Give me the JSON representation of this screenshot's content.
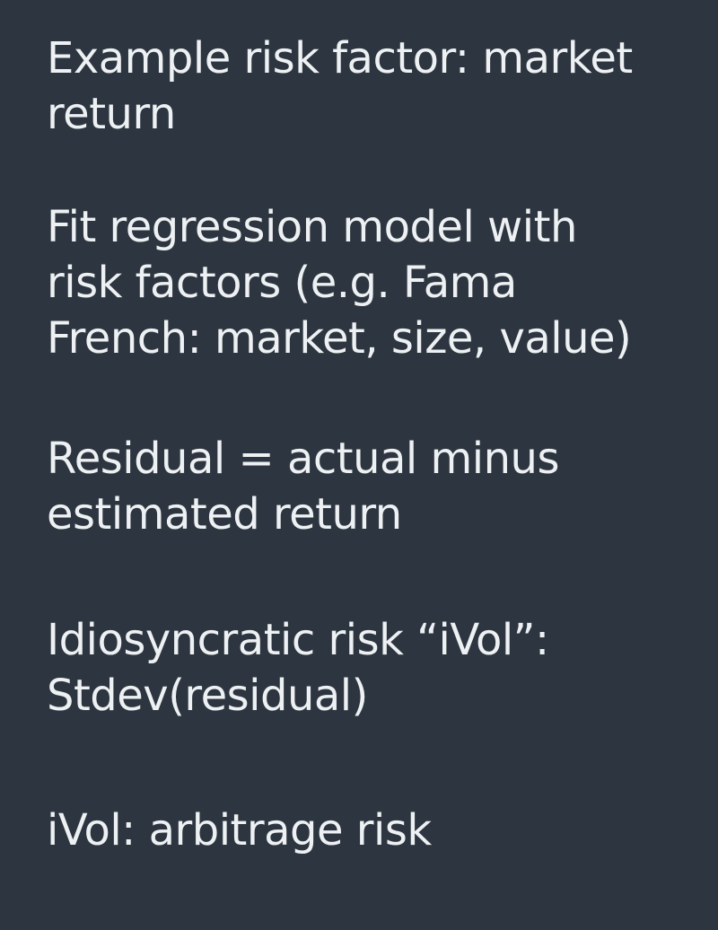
{
  "slide": {
    "background_color": "#2d3640",
    "text_color": "#eef1f3",
    "bullets": [
      {
        "lines": [
          "Example risk factor: market",
          "return"
        ]
      },
      {
        "lines": [
          "Fit regression model with",
          "risk factors (e.g. Fama",
          "French: market, size, value)"
        ]
      },
      {
        "lines": [
          "Residual = actual minus",
          "estimated return"
        ]
      },
      {
        "lines": [
          "Idiosyncratic risk “iVol”:",
          "Stdev(residual)"
        ]
      },
      {
        "lines": [
          "iVol: arbitrage risk"
        ]
      }
    ]
  }
}
